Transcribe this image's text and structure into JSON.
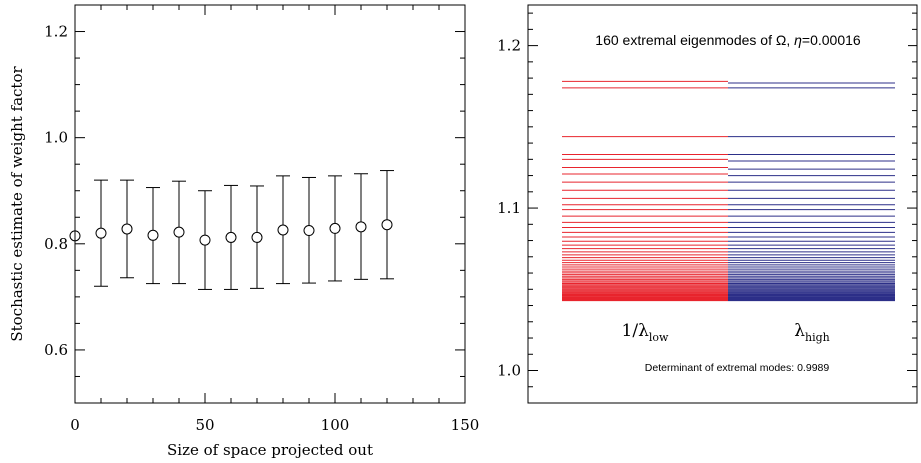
{
  "chart_data": [
    {
      "type": "scatter",
      "title": "",
      "xlabel": "Size of space projected out",
      "ylabel": "Stochastic estimate of weight factor",
      "xlim": [
        0,
        150
      ],
      "ylim": [
        0.5,
        1.25
      ],
      "x_ticks": [
        "0",
        "50",
        "100",
        "150"
      ],
      "y_ticks": [
        "0.6",
        "0.8",
        "1.0",
        "1.2"
      ],
      "grid": false,
      "marker": "open-circle",
      "points": [
        {
          "x": 0,
          "y": 0.815,
          "err_low": null,
          "err_high": null
        },
        {
          "x": 10,
          "y": 0.82,
          "err_low": 0.72,
          "err_high": 0.92
        },
        {
          "x": 20,
          "y": 0.828,
          "err_low": 0.736,
          "err_high": 0.92
        },
        {
          "x": 30,
          "y": 0.816,
          "err_low": 0.725,
          "err_high": 0.906
        },
        {
          "x": 40,
          "y": 0.822,
          "err_low": 0.725,
          "err_high": 0.918
        },
        {
          "x": 50,
          "y": 0.807,
          "err_low": 0.714,
          "err_high": 0.9
        },
        {
          "x": 60,
          "y": 0.812,
          "err_low": 0.714,
          "err_high": 0.91
        },
        {
          "x": 70,
          "y": 0.812,
          "err_low": 0.716,
          "err_high": 0.909
        },
        {
          "x": 80,
          "y": 0.826,
          "err_low": 0.725,
          "err_high": 0.928
        },
        {
          "x": 90,
          "y": 0.825,
          "err_low": 0.726,
          "err_high": 0.925
        },
        {
          "x": 100,
          "y": 0.829,
          "err_low": 0.73,
          "err_high": 0.928
        },
        {
          "x": 110,
          "y": 0.832,
          "err_low": 0.733,
          "err_high": 0.932
        },
        {
          "x": 120,
          "y": 0.836,
          "err_low": 0.734,
          "err_high": 0.938
        }
      ]
    },
    {
      "type": "eigenvalue-spectrum",
      "title_prefix": "160 extremal eigenmodes of ",
      "title_omega": "Ω",
      "title_mid": ", ",
      "title_eta": "η",
      "title_suffix": "=0.00016",
      "ylim": [
        0.98,
        1.225
      ],
      "y_ticks": [
        "1.0",
        "1.1",
        "1.2"
      ],
      "series": [
        {
          "label_main": "1/λ",
          "label_sub": "low",
          "color": "#e8242d",
          "values": [
            1.043,
            1.0434,
            1.0438,
            1.0442,
            1.0446,
            1.045,
            1.0455,
            1.046,
            1.0465,
            1.047,
            1.0476,
            1.0482,
            1.0488,
            1.0494,
            1.05,
            1.0507,
            1.0514,
            1.0521,
            1.0528,
            1.0536,
            1.0544,
            1.0552,
            1.0561,
            1.057,
            1.058,
            1.059,
            1.0601,
            1.0612,
            1.0624,
            1.0637,
            1.065,
            1.0664,
            1.0679,
            1.0695,
            1.0712,
            1.073,
            1.075,
            1.0772,
            1.0796,
            1.0822,
            1.085,
            1.088,
            1.0912,
            1.095,
            1.099,
            1.102,
            1.106,
            1.111,
            1.116,
            1.121,
            1.125,
            1.13,
            1.133,
            1.144,
            1.174,
            1.178
          ]
        },
        {
          "label_main": "λ",
          "label_sub": "high",
          "color": "#2c2f88",
          "values": [
            1.043,
            1.0434,
            1.0438,
            1.0442,
            1.0446,
            1.045,
            1.0455,
            1.046,
            1.0465,
            1.047,
            1.0476,
            1.0482,
            1.0488,
            1.0494,
            1.05,
            1.0507,
            1.0514,
            1.0521,
            1.0528,
            1.0536,
            1.0544,
            1.0552,
            1.0561,
            1.057,
            1.058,
            1.059,
            1.0601,
            1.0612,
            1.0624,
            1.0637,
            1.065,
            1.0664,
            1.0679,
            1.0695,
            1.0712,
            1.073,
            1.075,
            1.0772,
            1.0796,
            1.0822,
            1.085,
            1.088,
            1.0912,
            1.095,
            1.099,
            1.102,
            1.106,
            1.111,
            1.116,
            1.12,
            1.124,
            1.129,
            1.133,
            1.144,
            1.174,
            1.177
          ]
        }
      ],
      "annotation": "Determinant of extremal modes: 0.9989"
    }
  ]
}
